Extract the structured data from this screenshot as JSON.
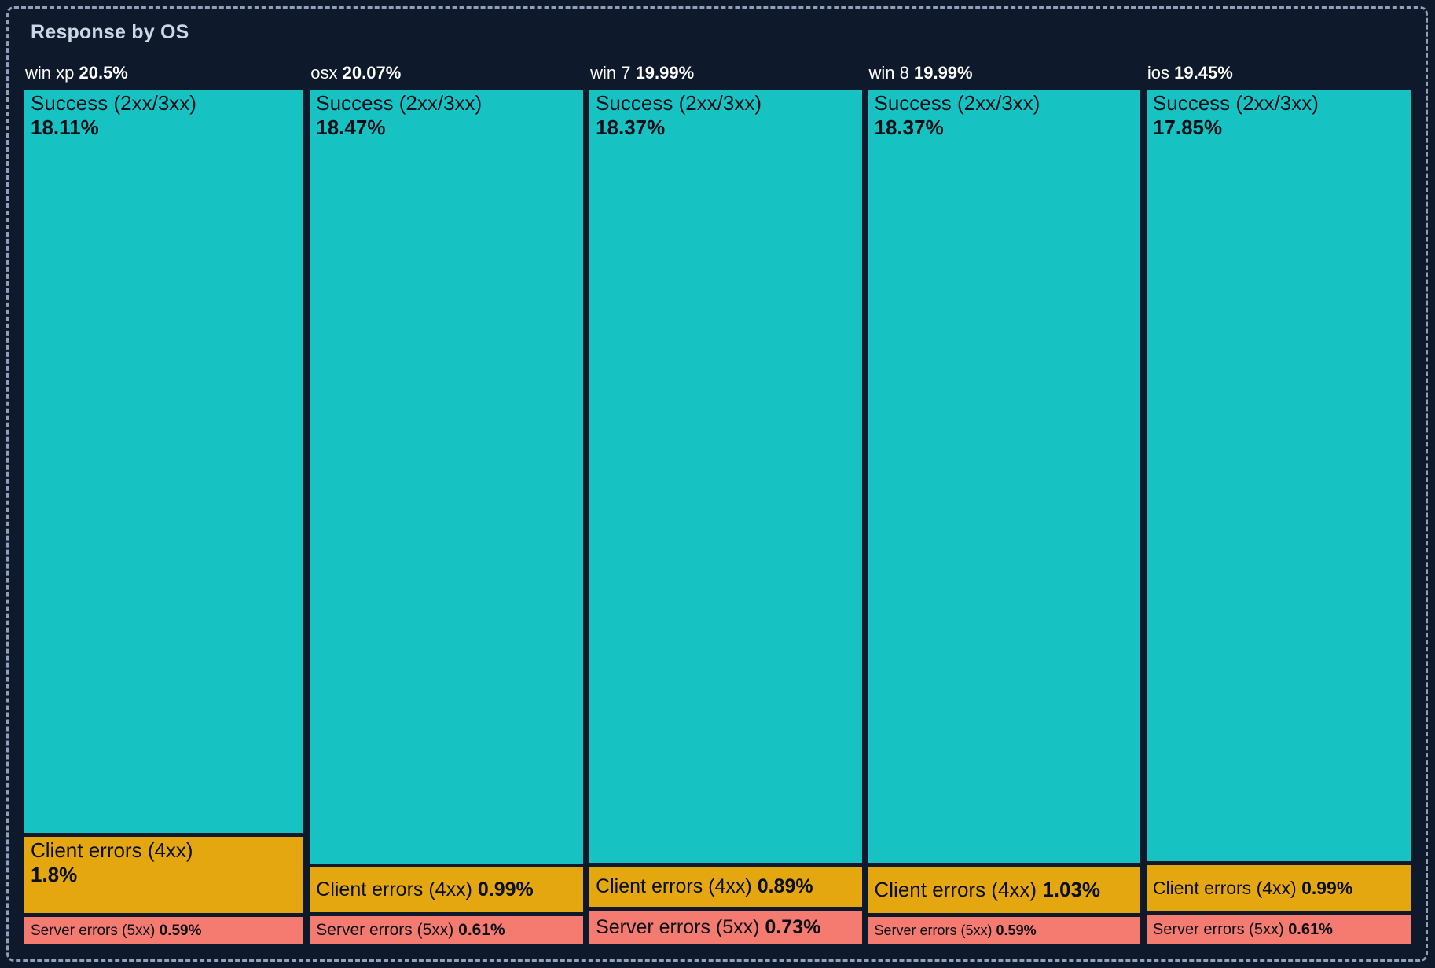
{
  "panel": {
    "title": "Response by OS"
  },
  "colors": {
    "background": "#0e1a2b",
    "panel_border": "#8fa0b8",
    "title_text": "#ccd6e4",
    "header_text": "#ffffff",
    "segment_text": "#0b1018",
    "success": "#16c2c2",
    "client_errors": "#e5a70f",
    "server_errors": "#f57a70"
  },
  "chart_data": {
    "type": "treemap",
    "title": "Response by OS",
    "legend_position": "none",
    "layout": "columns-by-os-segments-stacked-vertically",
    "columns": [
      {
        "name": "win xp",
        "total_pct": 20.5,
        "total_label": "20.5%",
        "segments": [
          {
            "kind": "success",
            "label": "Success (2xx/3xx)",
            "value_pct": 18.11,
            "value_label": "18.11%"
          },
          {
            "kind": "client_errors",
            "label": "Client errors (4xx)",
            "value_pct": 1.8,
            "value_label": "1.8%"
          },
          {
            "kind": "server_errors",
            "label": "Server errors (5xx)",
            "value_pct": 0.59,
            "value_label": "0.59%"
          }
        ]
      },
      {
        "name": "osx",
        "total_pct": 20.07,
        "total_label": "20.07%",
        "segments": [
          {
            "kind": "success",
            "label": "Success (2xx/3xx)",
            "value_pct": 18.47,
            "value_label": "18.47%"
          },
          {
            "kind": "client_errors",
            "label": "Client errors (4xx)",
            "value_pct": 0.99,
            "value_label": "0.99%"
          },
          {
            "kind": "server_errors",
            "label": "Server errors (5xx)",
            "value_pct": 0.61,
            "value_label": "0.61%"
          }
        ]
      },
      {
        "name": "win 7",
        "total_pct": 19.99,
        "total_label": "19.99%",
        "segments": [
          {
            "kind": "success",
            "label": "Success (2xx/3xx)",
            "value_pct": 18.37,
            "value_label": "18.37%"
          },
          {
            "kind": "client_errors",
            "label": "Client errors (4xx)",
            "value_pct": 0.89,
            "value_label": "0.89%"
          },
          {
            "kind": "server_errors",
            "label": "Server errors (5xx)",
            "value_pct": 0.73,
            "value_label": "0.73%"
          }
        ]
      },
      {
        "name": "win 8",
        "total_pct": 19.99,
        "total_label": "19.99%",
        "segments": [
          {
            "kind": "success",
            "label": "Success (2xx/3xx)",
            "value_pct": 18.37,
            "value_label": "18.37%"
          },
          {
            "kind": "client_errors",
            "label": "Client errors (4xx)",
            "value_pct": 1.03,
            "value_label": "1.03%"
          },
          {
            "kind": "server_errors",
            "label": "Server errors (5xx)",
            "value_pct": 0.59,
            "value_label": "0.59%"
          }
        ]
      },
      {
        "name": "ios",
        "total_pct": 19.45,
        "total_label": "19.45%",
        "segments": [
          {
            "kind": "success",
            "label": "Success (2xx/3xx)",
            "value_pct": 17.85,
            "value_label": "17.85%"
          },
          {
            "kind": "client_errors",
            "label": "Client errors (4xx)",
            "value_pct": 0.99,
            "value_label": "0.99%"
          },
          {
            "kind": "server_errors",
            "label": "Server errors (5xx)",
            "value_pct": 0.61,
            "value_label": "0.61%"
          }
        ]
      }
    ]
  }
}
